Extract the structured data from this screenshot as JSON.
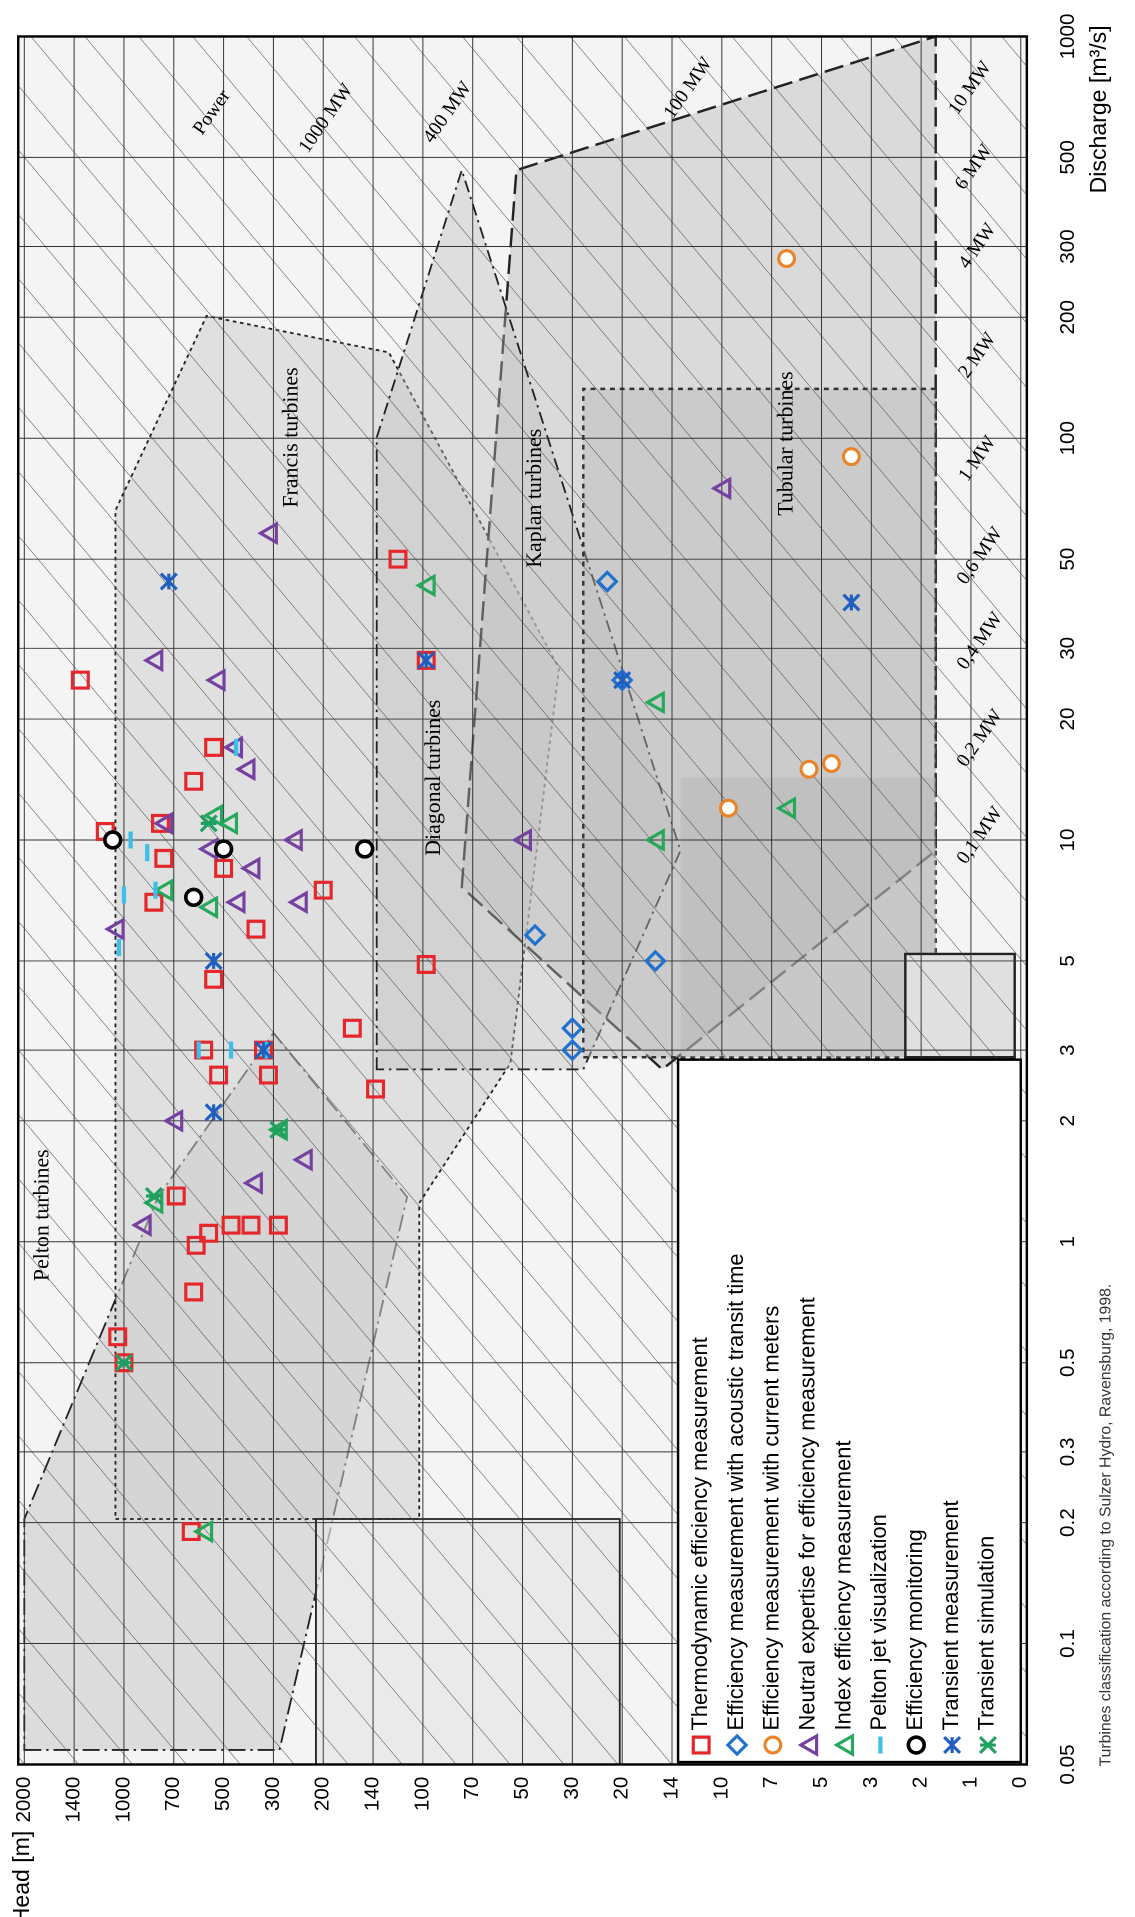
{
  "chart_data": {
    "type": "scatter",
    "x_label": "Discharge [m³/s]",
    "y_label": "Head [m]",
    "xscale": "log",
    "xlim": [
      0.05,
      1000
    ],
    "xticks": [
      0.05,
      0.1,
      0.2,
      0.3,
      0.5,
      1,
      2,
      3,
      5,
      10,
      20,
      30,
      50,
      100,
      200,
      300,
      500,
      1000
    ],
    "ylim": [
      0,
      2000
    ],
    "yticks": [
      2000,
      1400,
      1000,
      700,
      500,
      300,
      200,
      140,
      100,
      70,
      50,
      30,
      20,
      14,
      10,
      7,
      5,
      3,
      2,
      1,
      0
    ],
    "grid": true,
    "region_labels": [
      "Pelton turbines",
      "Francis turbines",
      "Kaplan turbines",
      "Diagonal turbines",
      "Tubular turbines"
    ],
    "power_labels": [
      "Power",
      "1000 MW",
      "400 MW",
      "100 MW",
      "10 MW",
      "6 MW",
      "4 MW",
      "2 MW",
      "1 MW",
      "0,6 MW",
      "0,4 MW",
      "0,2 MW",
      "0,1 MW"
    ],
    "note": "Turbines classification according to Sulzer Hydro, Ravensburg, 1998.",
    "series": [
      {
        "name": "Thermodynamic efficiency measurement",
        "color": "#e5262a",
        "marker": "square",
        "x": [
          25,
          10.5,
          0.58,
          0.5,
          0.75,
          0.98,
          1.3,
          1.05,
          9,
          11,
          7,
          14,
          17,
          8.5,
          4.5,
          3,
          2.6,
          1.1,
          1.1,
          1.1,
          0.19,
          2.6,
          3,
          6,
          7.5,
          3.4,
          2.4,
          4.9,
          50,
          28
        ],
        "values": [
          1350,
          1150,
          1050,
          1000,
          620,
          610,
          690,
          560,
          760,
          780,
          820,
          620,
          540,
          500,
          540,
          580,
          520,
          470,
          390,
          290,
          630,
          320,
          340,
          370,
          200,
          165,
          138,
          98,
          120,
          98
        ]
      },
      {
        "name": "Efficiency measurement with acoustic transit time",
        "color": "#1f72cf",
        "marker": "diamond",
        "x": [
          44,
          25,
          5.8,
          3.4,
          3,
          5
        ],
        "values": [
          23,
          20,
          45,
          30,
          30,
          16
        ]
      },
      {
        "name": "Efficiency measurement with current meters",
        "color": "#e8852a",
        "marker": "circle",
        "x": [
          280,
          90,
          12,
          15,
          15.5
        ],
        "values": [
          6.4,
          3.8,
          9.6,
          5.5,
          4.6
        ]
      },
      {
        "name": "Neutral expertise for efficiency measurement",
        "color": "#7540a0",
        "marker": "triangle",
        "x": [
          58,
          28,
          25,
          17,
          15,
          11,
          10,
          9.5,
          8.5,
          7,
          7,
          6,
          2,
          1.4,
          1.6,
          1.1,
          10,
          75
        ],
        "values": [
          320,
          820,
          530,
          460,
          410,
          760,
          260,
          560,
          390,
          450,
          250,
          1070,
          700,
          380,
          240,
          890,
          50,
          10
        ]
      },
      {
        "name": "Index efficiency measurement",
        "color": "#25a85a",
        "marker": "triangle",
        "x": [
          0.19,
          1.25,
          1.9,
          6.8,
          7.5,
          11.5,
          11,
          43,
          22,
          10,
          12
        ],
        "values": [
          580,
          820,
          290,
          560,
          760,
          540,
          480,
          98,
          16,
          16,
          6.4
        ]
      },
      {
        "name": "Pelton jet visualization",
        "color": "#3cbfe8",
        "marker": "dash",
        "x": [
          5.4,
          10,
          7.3,
          7.5,
          9.3,
          3,
          3,
          17,
          3
        ],
        "values": [
          1040,
          960,
          1000,
          810,
          860,
          600,
          470,
          450,
          330
        ]
      },
      {
        "name": "Efficiency monitoring",
        "color": "#000000",
        "marker": "ring",
        "x": [
          10,
          7.2,
          9.5,
          9.5
        ],
        "values": [
          1090,
          620,
          500,
          150
        ]
      },
      {
        "name": "Transient measurement",
        "color": "#1f5fc0",
        "marker": "cross",
        "x": [
          44,
          5,
          2.1,
          3,
          28,
          25,
          39
        ],
        "values": [
          730,
          540,
          540,
          340,
          98,
          20,
          3.8
        ]
      },
      {
        "name": "Transient simulation",
        "color": "#1fa060",
        "marker": "star",
        "x": [
          0.5,
          1.3,
          11,
          1.9
        ],
        "values": [
          1000,
          820,
          560,
          290
        ]
      }
    ]
  }
}
